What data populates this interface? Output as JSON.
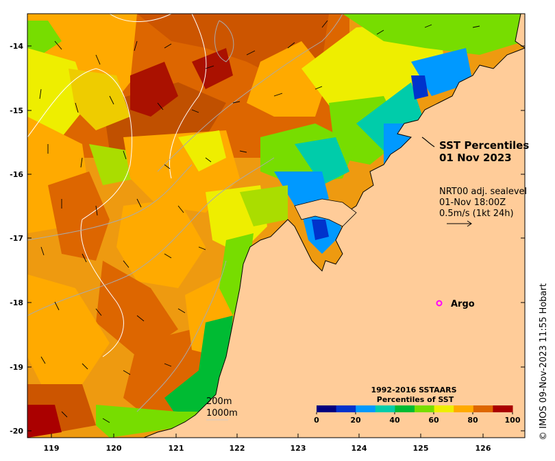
{
  "title": {
    "line1": "SST Percentiles",
    "line2": "01 Nov 2023"
  },
  "sealevel": {
    "product": "NRT00 adj. sealevel",
    "time": "01-Nov 18:00Z",
    "scale_text": "0.5m/s (1kt 24h)"
  },
  "argo_label": "Argo",
  "contours": {
    "depth1": "200m",
    "depth2": "1000m"
  },
  "colorbar": {
    "title1": "1992-2016 SSTAARS",
    "title2": "Percentiles of SST",
    "tick_labels": [
      "0",
      "20",
      "40",
      "60",
      "80",
      "100"
    ],
    "colors": [
      "#00007f",
      "#0033cc",
      "#0099ff",
      "#00ccaa",
      "#00bb33",
      "#77dd00",
      "#eeee00",
      "#ffaa00",
      "#dd6600",
      "#aa0000"
    ]
  },
  "credit": "© IMOS 09-Nov-2023 11:55 Hobart",
  "axes": {
    "lon_labels": [
      "119",
      "120",
      "121",
      "122",
      "123",
      "124",
      "125",
      "126"
    ],
    "lat_labels": [
      "-14",
      "-15",
      "-16",
      "-17",
      "-18",
      "-19",
      "-20"
    ]
  },
  "colors": {
    "land": "#ffcc99",
    "argo_marker": "#ff00ff"
  }
}
